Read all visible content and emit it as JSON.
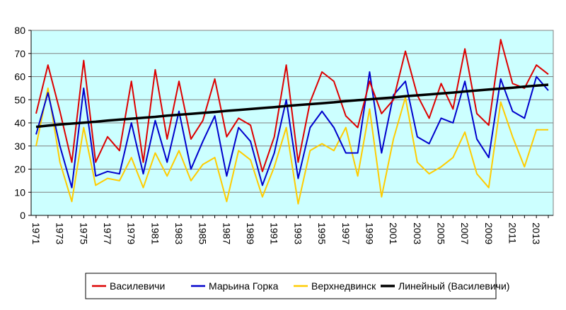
{
  "chart_data": {
    "type": "line",
    "title": "",
    "xlabel": "",
    "ylabel": "",
    "ylim": [
      0,
      80
    ],
    "y_ticks": [
      0,
      10,
      20,
      30,
      40,
      50,
      60,
      70,
      80
    ],
    "x": [
      1971,
      1972,
      1973,
      1974,
      1975,
      1976,
      1977,
      1978,
      1979,
      1980,
      1981,
      1982,
      1983,
      1984,
      1985,
      1986,
      1987,
      1988,
      1989,
      1990,
      1991,
      1992,
      1993,
      1994,
      1995,
      1996,
      1997,
      1998,
      1999,
      2000,
      2001,
      2002,
      2003,
      2004,
      2005,
      2006,
      2007,
      2008,
      2009,
      2010,
      2011,
      2012,
      2013,
      2014
    ],
    "x_tick_labels": [
      "1971",
      "1973",
      "1975",
      "1977",
      "1979",
      "1981",
      "1983",
      "1985",
      "1987",
      "1989",
      "1991",
      "1993",
      "1995",
      "1997",
      "1999",
      "2001",
      "2003",
      "2005",
      "2007",
      "2009",
      "2011",
      "2013"
    ],
    "grid": "horizontal",
    "plot_background": "#ccffff",
    "legend_position": "bottom",
    "series": [
      {
        "name": "Василевичи",
        "color": "#dd0000",
        "values": [
          44,
          65,
          45,
          23,
          67,
          23,
          34,
          28,
          58,
          23,
          63,
          33,
          58,
          33,
          41,
          59,
          34,
          42,
          39,
          19,
          34,
          65,
          23,
          49,
          62,
          58,
          43,
          38,
          58,
          44,
          50,
          71,
          52,
          42,
          57,
          46,
          72,
          44,
          39,
          76,
          57,
          55,
          65,
          61
        ]
      },
      {
        "name": "Марьина Горка",
        "color": "#0000cc",
        "values": [
          35,
          53,
          30,
          12,
          55,
          17,
          19,
          18,
          40,
          18,
          41,
          23,
          45,
          20,
          32,
          43,
          17,
          38,
          32,
          13,
          27,
          50,
          16,
          38,
          45,
          38,
          27,
          27,
          62,
          27,
          52,
          58,
          34,
          31,
          42,
          40,
          58,
          33,
          25,
          59,
          45,
          42,
          60,
          54
        ]
      },
      {
        "name": "Верхнедвинск",
        "color": "#ffcc00",
        "values": [
          30,
          55,
          23,
          6,
          38,
          13,
          16,
          15,
          25,
          12,
          27,
          17,
          28,
          15,
          22,
          25,
          6,
          28,
          24,
          8,
          21,
          38,
          5,
          28,
          31,
          28,
          38,
          17,
          46,
          8,
          33,
          51,
          23,
          18,
          21,
          25,
          36,
          18,
          12,
          49,
          34,
          21,
          37,
          37
        ]
      },
      {
        "name": "Линейный (Василевичи)",
        "color": "#000000",
        "values": [
          38.3,
          38.8,
          39.3,
          39.7,
          40.1,
          40.5,
          41.0,
          41.4,
          41.8,
          42.2,
          42.6,
          43.1,
          43.5,
          43.9,
          44.3,
          44.7,
          45.2,
          45.6,
          46.0,
          46.4,
          46.8,
          47.3,
          47.7,
          48.1,
          48.5,
          48.9,
          49.4,
          49.8,
          50.2,
          50.6,
          51.0,
          51.5,
          51.9,
          52.3,
          52.7,
          53.1,
          53.6,
          54.0,
          54.4,
          54.8,
          55.2,
          55.7,
          56.1,
          56.5
        ]
      }
    ]
  }
}
